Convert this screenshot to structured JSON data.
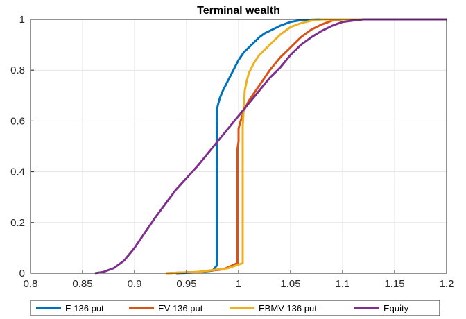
{
  "chart_data": {
    "type": "line",
    "title": "Terminal wealth",
    "xlabel": "",
    "ylabel": "",
    "xlim": [
      0.8,
      1.2
    ],
    "ylim": [
      0,
      1
    ],
    "xticks": [
      "0.8",
      "0.85",
      "0.9",
      "0.95",
      "1",
      "1.05",
      "1.1",
      "1.15",
      "1.2"
    ],
    "yticks": [
      "0",
      "0.2",
      "0.4",
      "0.6",
      "0.8",
      "1"
    ],
    "grid": true,
    "legend_position": "bottom-outside",
    "series": [
      {
        "name": "E 136 put",
        "color": "#0072BD",
        "x": [
          0.94,
          0.96,
          0.975,
          0.979,
          0.979,
          0.98,
          0.982,
          0.985,
          0.99,
          0.995,
          1.0,
          1.005,
          1.01,
          1.015,
          1.02,
          1.025,
          1.03,
          1.04,
          1.05,
          1.06,
          1.07,
          1.08,
          1.1,
          1.2
        ],
        "y": [
          0,
          0.003,
          0.01,
          0.03,
          0.64,
          0.66,
          0.69,
          0.72,
          0.76,
          0.8,
          0.84,
          0.87,
          0.89,
          0.91,
          0.93,
          0.945,
          0.955,
          0.975,
          0.99,
          0.997,
          0.999,
          1,
          1,
          1
        ]
      },
      {
        "name": "EV 136 put",
        "color": "#D95319",
        "x": [
          0.93,
          0.96,
          0.985,
          0.999,
          0.999,
          1.0,
          1.0,
          1.002,
          1.005,
          1.01,
          1.015,
          1.02,
          1.03,
          1.04,
          1.05,
          1.06,
          1.07,
          1.08,
          1.09,
          1.1,
          1.2
        ],
        "y": [
          0,
          0.005,
          0.015,
          0.04,
          0.49,
          0.52,
          0.57,
          0.6,
          0.64,
          0.68,
          0.71,
          0.74,
          0.8,
          0.85,
          0.89,
          0.93,
          0.96,
          0.98,
          0.995,
          1,
          1
        ]
      },
      {
        "name": "EBMV 136 put",
        "color": "#EDB120",
        "x": [
          0.93,
          0.96,
          0.99,
          1.004,
          1.004,
          1.005,
          1.006,
          1.008,
          1.01,
          1.015,
          1.02,
          1.03,
          1.04,
          1.05,
          1.06,
          1.07,
          1.08,
          1.1,
          1.2
        ],
        "y": [
          0,
          0.005,
          0.02,
          0.04,
          0.58,
          0.65,
          0.72,
          0.76,
          0.79,
          0.83,
          0.86,
          0.9,
          0.94,
          0.97,
          0.985,
          0.995,
          1,
          1,
          1
        ]
      },
      {
        "name": "Equity",
        "color": "#7E2F8E",
        "x": [
          0.862,
          0.87,
          0.88,
          0.89,
          0.9,
          0.91,
          0.92,
          0.94,
          0.96,
          0.98,
          1.0,
          1.01,
          1.02,
          1.03,
          1.04,
          1.05,
          1.06,
          1.07,
          1.08,
          1.09,
          1.1,
          1.11,
          1.12,
          1.13,
          1.2
        ],
        "y": [
          0,
          0.005,
          0.02,
          0.05,
          0.1,
          0.16,
          0.22,
          0.33,
          0.42,
          0.52,
          0.62,
          0.67,
          0.72,
          0.77,
          0.81,
          0.86,
          0.9,
          0.93,
          0.955,
          0.975,
          0.99,
          0.995,
          1,
          1,
          1
        ]
      }
    ]
  }
}
